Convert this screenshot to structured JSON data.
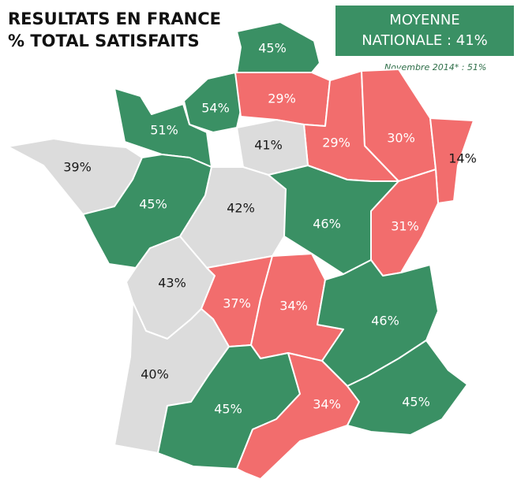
{
  "title": {
    "line1": "RESULTATS EN FRANCE",
    "line2": "% TOTAL SATISFAITS"
  },
  "average": {
    "line1": "MOYENNE",
    "line2": "NATIONALE : 41%",
    "note": "Novembre 2014* : 51%"
  },
  "colors": {
    "green": "#3a9064",
    "red": "#f26d6d",
    "grey": "#dcdcdc"
  },
  "regions": [
    {
      "id": "nord",
      "label": "45%",
      "category": "green"
    },
    {
      "id": "haute-normandie",
      "label": "54%",
      "category": "green"
    },
    {
      "id": "basse-normandie",
      "label": "51%",
      "category": "green"
    },
    {
      "id": "picardie",
      "label": "29%",
      "category": "red"
    },
    {
      "id": "champagne",
      "label": "29%",
      "category": "red"
    },
    {
      "id": "lorraine",
      "label": "30%",
      "category": "red"
    },
    {
      "id": "alsace",
      "label": "14%",
      "category": "red"
    },
    {
      "id": "bretagne",
      "label": "39%",
      "category": "grey"
    },
    {
      "id": "ile-de-france",
      "label": "41%",
      "category": "grey"
    },
    {
      "id": "pays-de-la-loire",
      "label": "45%",
      "category": "green"
    },
    {
      "id": "centre",
      "label": "42%",
      "category": "grey"
    },
    {
      "id": "bourgogne",
      "label": "46%",
      "category": "green"
    },
    {
      "id": "franche-comte",
      "label": "31%",
      "category": "red"
    },
    {
      "id": "poitou-charentes",
      "label": "43%",
      "category": "grey"
    },
    {
      "id": "limousin",
      "label": "37%",
      "category": "red"
    },
    {
      "id": "auvergne",
      "label": "34%",
      "category": "red"
    },
    {
      "id": "rhone-alpes",
      "label": "46%",
      "category": "green"
    },
    {
      "id": "aquitaine",
      "label": "40%",
      "category": "grey"
    },
    {
      "id": "midi-pyrenees",
      "label": "45%",
      "category": "green"
    },
    {
      "id": "languedoc",
      "label": "34%",
      "category": "red"
    },
    {
      "id": "paca",
      "label": "45%",
      "category": "green"
    }
  ]
}
